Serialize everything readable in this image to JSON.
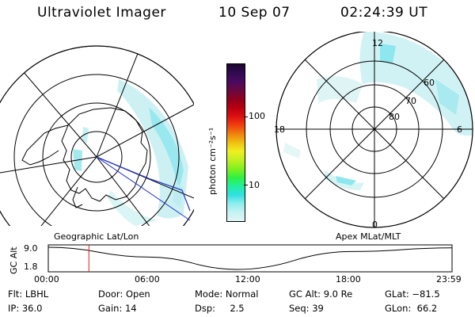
{
  "header": {
    "title": "Ultraviolet Imager",
    "date": "10 Sep 07",
    "time": "02:24:39 UT"
  },
  "colorbar": {
    "unit_label": "photon cm⁻²s⁻¹",
    "ticks": [
      "100",
      "10"
    ],
    "colors": [
      "#1c0630",
      "#300a50",
      "#4a0a60",
      "#6a0840",
      "#900020",
      "#b80010",
      "#dc1010",
      "#f04010",
      "#f08010",
      "#f0c010",
      "#f0f020",
      "#c0f020",
      "#80f020",
      "#30f040",
      "#20f0a0",
      "#30e0e0",
      "#90eeee",
      "#c6f2f2",
      "#e0f6f6"
    ]
  },
  "left_map": {
    "label": "Geographic Lat/Lon"
  },
  "right_map": {
    "label": "Apex MLat/MLT",
    "lat_labels": [
      "60",
      "70",
      "80"
    ],
    "mlt_labels": [
      "12",
      "18",
      "6",
      "0"
    ]
  },
  "timeline": {
    "ylabel": "GC Alt",
    "yticks": [
      "9.0",
      "1.8"
    ],
    "xticks": [
      "00:00",
      "06:00",
      "12:00",
      "18:00",
      "23:59"
    ],
    "marker_color": "#dd2020"
  },
  "info": {
    "flt_label": "Flt:",
    "flt_value": "LBHL",
    "ip_label": "IP:",
    "ip_value": "36.0",
    "door_label": "Door:",
    "door_value": "Open",
    "gain_label": "Gain:",
    "gain_value": "14",
    "mode_label": "Mode:",
    "mode_value": "Normal",
    "dsp_label": "Dsp:",
    "dsp_value": "2.5",
    "gcalt_label": "GC Alt:",
    "gcalt_value": "9.0 Re",
    "seq_label": "Seq:",
    "seq_value": "39",
    "glat_label": "GLat:",
    "glat_value": "−81.5",
    "glon_label": "GLon:",
    "glon_value": "66.2"
  },
  "chart_data": {
    "type": "line",
    "x_ticks": [
      "00:00",
      "06:00",
      "12:00",
      "18:00",
      "23:59"
    ],
    "y_ticks": [
      9.0,
      1.8
    ],
    "ylabel": "GC Alt",
    "series": [
      {
        "x": [
          "00:00",
          "06:00",
          "11:12",
          "18:00",
          "23:59"
        ],
        "values": [
          9.0,
          5.8,
          1.8,
          7.6,
          8.8
        ]
      }
    ],
    "marker_time": "02:24:39"
  }
}
